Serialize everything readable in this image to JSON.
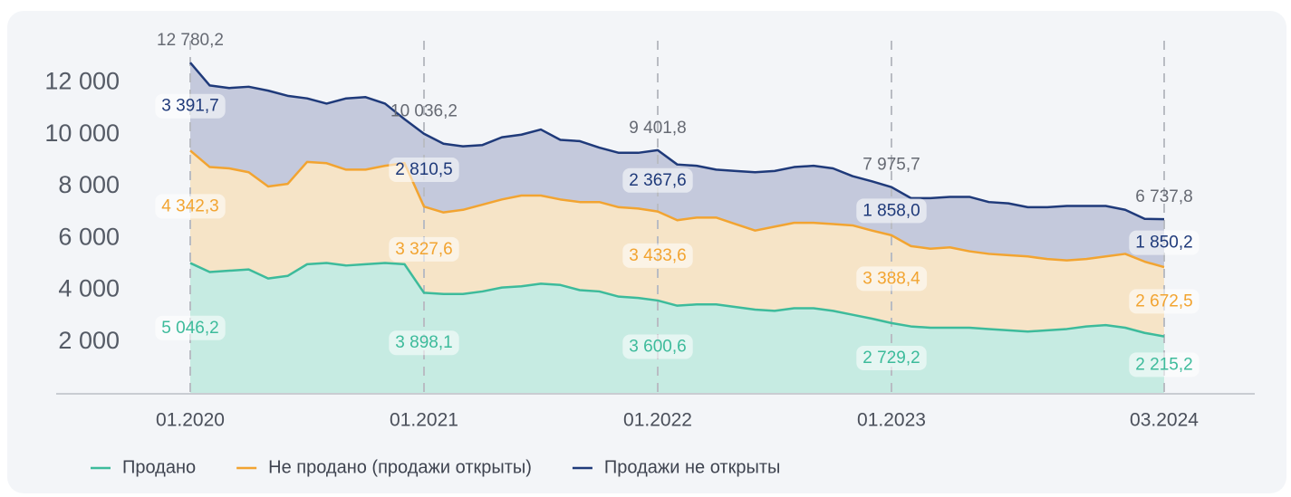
{
  "chart_data": {
    "type": "stacked_area",
    "x": [
      "01.2020",
      "02.2020",
      "03.2020",
      "04.2020",
      "05.2020",
      "06.2020",
      "07.2020",
      "08.2020",
      "09.2020",
      "10.2020",
      "11.2020",
      "12.2020",
      "01.2021",
      "02.2021",
      "03.2021",
      "04.2021",
      "05.2021",
      "06.2021",
      "07.2021",
      "08.2021",
      "09.2021",
      "10.2021",
      "11.2021",
      "12.2021",
      "01.2022",
      "02.2022",
      "03.2022",
      "04.2022",
      "05.2022",
      "06.2022",
      "07.2022",
      "08.2022",
      "09.2022",
      "10.2022",
      "11.2022",
      "12.2022",
      "01.2023",
      "02.2023",
      "03.2023",
      "04.2023",
      "05.2023",
      "06.2023",
      "07.2023",
      "08.2023",
      "09.2023",
      "10.2023",
      "11.2023",
      "12.2023",
      "01.2024",
      "02.2024",
      "03.2024"
    ],
    "xticks": [
      "01.2020",
      "01.2021",
      "01.2022",
      "01.2023",
      "03.2024"
    ],
    "ylim": [
      0,
      13800
    ],
    "yticks": [
      {
        "value": 2000,
        "label": "2 000"
      },
      {
        "value": 4000,
        "label": "4 000"
      },
      {
        "value": 6000,
        "label": "6 000"
      },
      {
        "value": 8000,
        "label": "8 000"
      },
      {
        "value": 10000,
        "label": "10 000"
      },
      {
        "value": 12000,
        "label": "12 000"
      }
    ],
    "series": [
      {
        "name": "Продано",
        "color": "#3dbb9b",
        "fill": "#c6ebe2",
        "values": [
          5046.2,
          4700,
          4750,
          4800,
          4450,
          4550,
          5000,
          5050,
          4950,
          5000,
          5050,
          5000,
          3898.1,
          3850,
          3850,
          3950,
          4100,
          4150,
          4250,
          4200,
          4000,
          3950,
          3750,
          3700,
          3600.6,
          3400,
          3450,
          3450,
          3350,
          3250,
          3200,
          3300,
          3300,
          3200,
          3050,
          2900,
          2729.2,
          2600,
          2550,
          2550,
          2550,
          2500,
          2450,
          2400,
          2450,
          2500,
          2600,
          2650,
          2550,
          2350,
          2215.2
        ],
        "value_labels": [
          "5 046,2",
          null,
          null,
          null,
          null,
          null,
          null,
          null,
          null,
          null,
          null,
          null,
          "3 898,1",
          null,
          null,
          null,
          null,
          null,
          null,
          null,
          null,
          null,
          null,
          null,
          "3 600,6",
          null,
          null,
          null,
          null,
          null,
          null,
          null,
          null,
          null,
          null,
          null,
          "2 729,2",
          null,
          null,
          null,
          null,
          null,
          null,
          null,
          null,
          null,
          null,
          null,
          null,
          null,
          "2 215,2"
        ]
      },
      {
        "name": "Не продано (продажи открыты)",
        "color": "#f2a431",
        "fill": "#f6e4c7",
        "values": [
          4342.3,
          4050,
          3950,
          3750,
          3550,
          3550,
          3950,
          3850,
          3700,
          3650,
          3750,
          3900,
          3327.6,
          3150,
          3250,
          3350,
          3400,
          3500,
          3400,
          3300,
          3400,
          3450,
          3450,
          3450,
          3433.6,
          3300,
          3350,
          3350,
          3200,
          3050,
          3250,
          3300,
          3300,
          3350,
          3450,
          3400,
          3388.4,
          3100,
          3050,
          3100,
          2950,
          2900,
          2900,
          2900,
          2750,
          2650,
          2600,
          2650,
          2850,
          2750,
          2672.5
        ],
        "value_labels": [
          "4 342,3",
          null,
          null,
          null,
          null,
          null,
          null,
          null,
          null,
          null,
          null,
          null,
          "3 327,6",
          null,
          null,
          null,
          null,
          null,
          null,
          null,
          null,
          null,
          null,
          null,
          "3 433,6",
          null,
          null,
          null,
          null,
          null,
          null,
          null,
          null,
          null,
          null,
          null,
          "3 388,4",
          null,
          null,
          null,
          null,
          null,
          null,
          null,
          null,
          null,
          null,
          null,
          null,
          null,
          "2 672,5"
        ]
      },
      {
        "name": "Продажи не открыты",
        "color": "#1f3a7a",
        "fill": "#c4c9dc",
        "values": [
          3391.7,
          3150,
          3100,
          3300,
          3700,
          3400,
          2450,
          2300,
          2750,
          2800,
          2400,
          1700,
          2810.5,
          2650,
          2450,
          2300,
          2400,
          2350,
          2550,
          2300,
          2350,
          2100,
          2100,
          2150,
          2367.6,
          2150,
          2000,
          1850,
          2050,
          2250,
          2150,
          2150,
          2200,
          2150,
          1900,
          1900,
          1858.0,
          1850,
          1950,
          1950,
          2100,
          2000,
          2000,
          1900,
          2000,
          2100,
          2050,
          1950,
          1700,
          1650,
          1850.2
        ],
        "value_labels": [
          "3 391,7",
          null,
          null,
          null,
          null,
          null,
          null,
          null,
          null,
          null,
          null,
          null,
          "2 810,5",
          null,
          null,
          null,
          null,
          null,
          null,
          null,
          null,
          null,
          null,
          null,
          "2 367,6",
          null,
          null,
          null,
          null,
          null,
          null,
          null,
          null,
          null,
          null,
          null,
          "1 858,0",
          null,
          null,
          null,
          null,
          null,
          null,
          null,
          null,
          null,
          null,
          null,
          null,
          null,
          "1 850,2"
        ]
      }
    ],
    "totals": [
      12780.2,
      10036.2,
      9401.8,
      7975.7,
      6737.8
    ],
    "total_labels": [
      "12 780,2",
      "10 036,2",
      "9 401,8",
      "7 975,7",
      "6 737,8"
    ],
    "total_color": "#666a73"
  }
}
